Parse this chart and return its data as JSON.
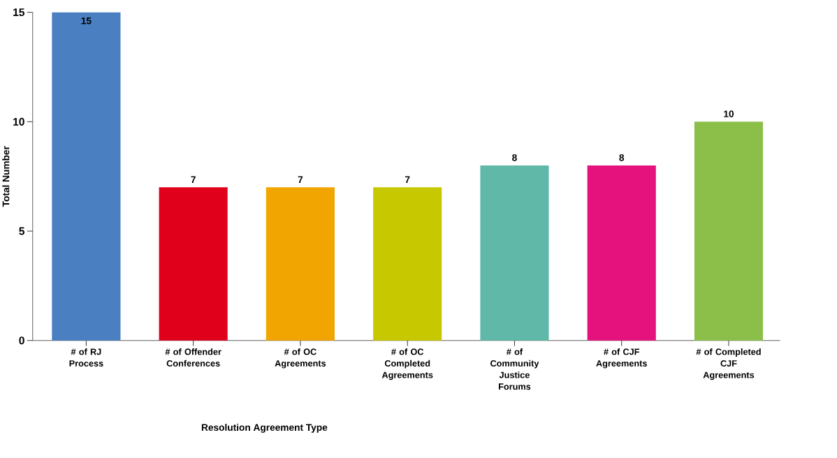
{
  "chart_data": {
    "type": "bar",
    "xlabel": "Resolution Agreement Type",
    "ylabel": "Total Number",
    "categories": [
      "# of RJ Process",
      "# of Offender Conferences",
      "# of OC Agreements",
      "# of OC Completed Agreements",
      "# of Community Justice Forums",
      "# of CJF Agreements",
      "# of Completed CJF Agreements"
    ],
    "values": [
      15,
      7,
      7,
      7,
      8,
      8,
      10
    ],
    "colors": [
      "#4a7fc1",
      "#e0001b",
      "#f0a500",
      "#c8c800",
      "#5fb8a8",
      "#e5127d",
      "#8cbf4a"
    ],
    "ylim": [
      0,
      15
    ],
    "yticks": [
      0,
      5,
      10,
      15
    ],
    "data_labels": true
  }
}
